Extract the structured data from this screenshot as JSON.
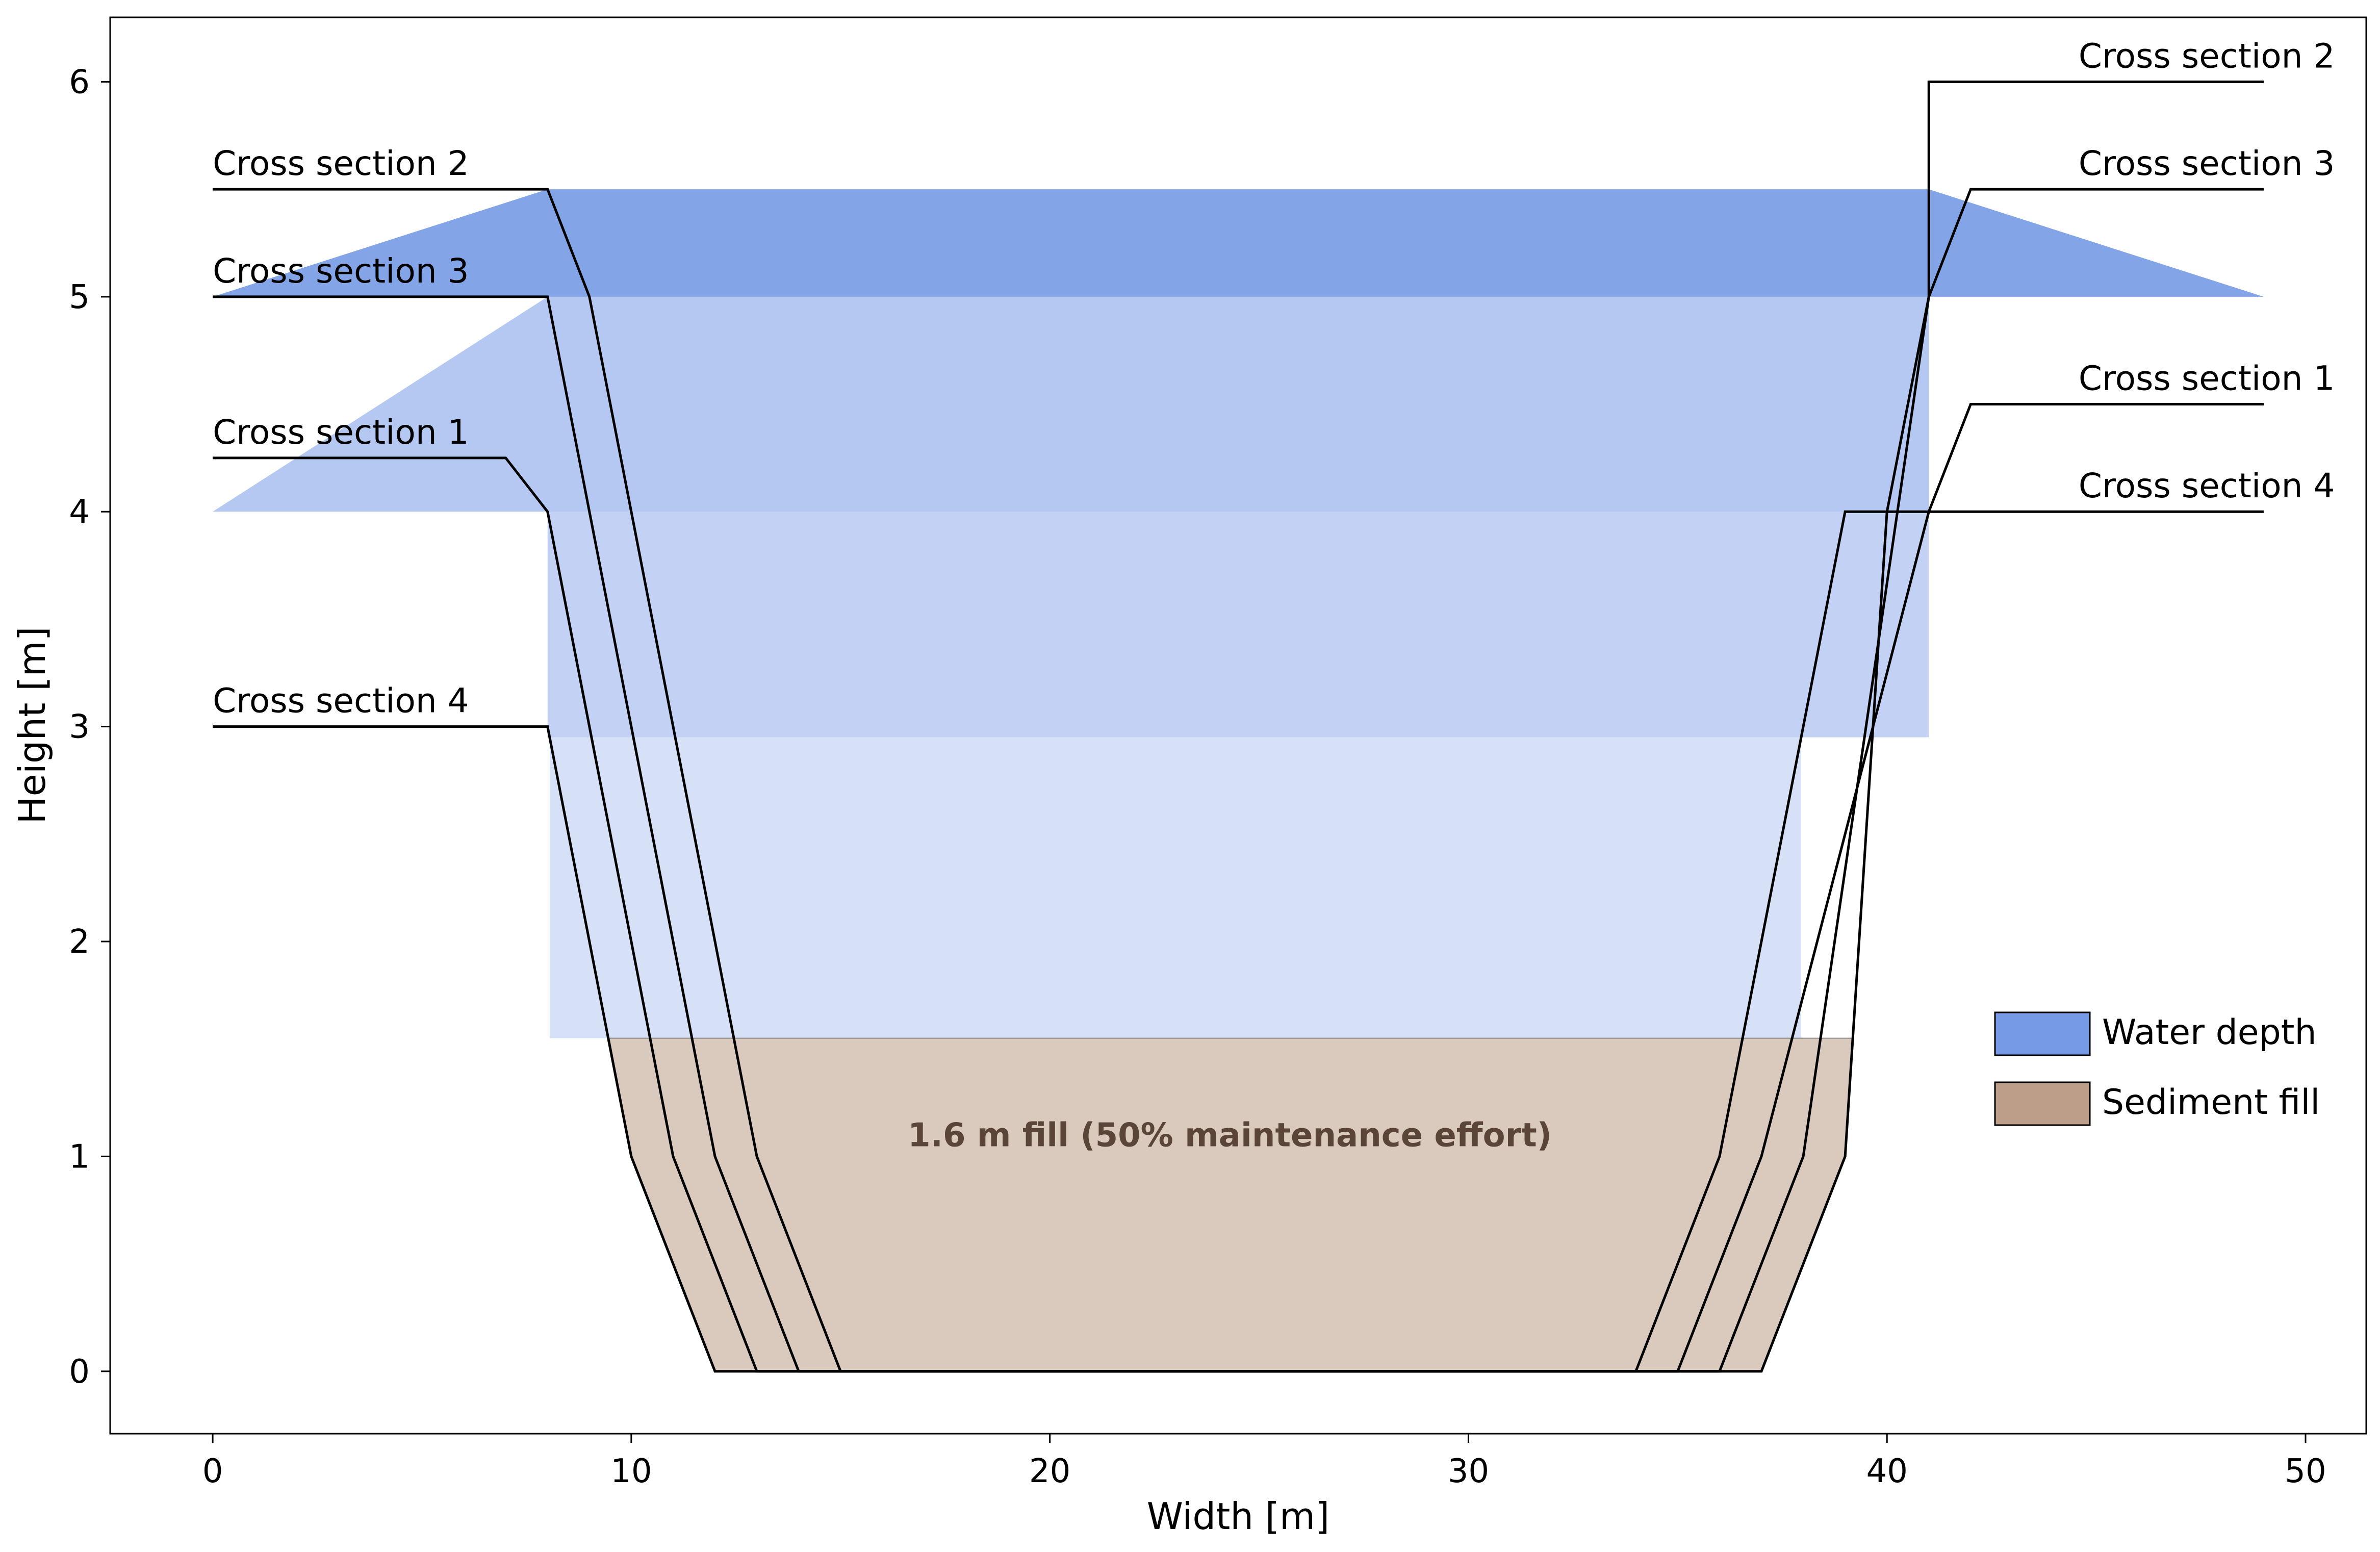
{
  "chart_data": {
    "type": "area",
    "title": "",
    "xlabel": "Width [m]",
    "ylabel": "Height [m]",
    "xlim": [
      -2.45,
      51.45
    ],
    "ylim": [
      -0.29,
      6.3
    ],
    "xticks": [
      0,
      10,
      20,
      30,
      40,
      50
    ],
    "yticks": [
      0,
      1,
      2,
      3,
      4,
      5,
      6
    ],
    "grid": false,
    "legend_position": "right",
    "colors": {
      "water": "#779ae6",
      "sediment": "#bc9e89",
      "sediment_text": "#5b4538",
      "profile": "#000000"
    },
    "cross_sections": [
      {
        "name": "Cross section 2",
        "points": [
          [
            0,
            5.5
          ],
          [
            8,
            5.5
          ],
          [
            9,
            5.0
          ],
          [
            10,
            4.0
          ],
          [
            13,
            1.0
          ],
          [
            15,
            0
          ],
          [
            37,
            0
          ],
          [
            39,
            1.0
          ],
          [
            40,
            4.0
          ],
          [
            41,
            5.0
          ],
          [
            41,
            6.0
          ],
          [
            49,
            6.0
          ]
        ],
        "water_level": 5.5,
        "water_opacity": 0.9
      },
      {
        "name": "Cross section 3",
        "points": [
          [
            0,
            5.0
          ],
          [
            8,
            5.0
          ],
          [
            9,
            4.0
          ],
          [
            12,
            1.0
          ],
          [
            14,
            0
          ],
          [
            36,
            0
          ],
          [
            38,
            1.0
          ],
          [
            41,
            5.0
          ],
          [
            42,
            5.5
          ],
          [
            49,
            5.5
          ]
        ],
        "water_level": 5.0,
        "water_opacity": 0.55
      },
      {
        "name": "Cross section 1",
        "points": [
          [
            0,
            4.25
          ],
          [
            7,
            4.25
          ],
          [
            8,
            4.0
          ],
          [
            11,
            1.0
          ],
          [
            13,
            0
          ],
          [
            35,
            0
          ],
          [
            37,
            1.0
          ],
          [
            41,
            4.0
          ],
          [
            42,
            4.5
          ],
          [
            49,
            4.5
          ]
        ],
        "water_level": 4.0,
        "water_opacity": 0.45
      },
      {
        "name": "Cross section 4",
        "points": [
          [
            0,
            3.0
          ],
          [
            8,
            3.0
          ],
          [
            10,
            1.0
          ],
          [
            12,
            0
          ],
          [
            34,
            0
          ],
          [
            36,
            1.0
          ],
          [
            39,
            4.0
          ],
          [
            42,
            4.0
          ],
          [
            49,
            4.0
          ]
        ],
        "water_level": 2.95,
        "water_opacity": 0.3
      }
    ],
    "sediment_fill": {
      "level": 1.55,
      "annotation": "1.6 m fill (50% maintenance effort)",
      "annotation_position": [
        24.3,
        1.1
      ]
    },
    "left_labels": [
      {
        "text": "Cross section 2",
        "y": 5.5
      },
      {
        "text": "Cross section 3",
        "y": 5.0
      },
      {
        "text": "Cross section 1",
        "y": 4.25
      },
      {
        "text": "Cross section 4",
        "y": 3.0
      }
    ],
    "right_labels": [
      {
        "text": "Cross section 2",
        "y": 6.0
      },
      {
        "text": "Cross section 3",
        "y": 5.5
      },
      {
        "text": "Cross section 1",
        "y": 4.5
      },
      {
        "text": "Cross section 4",
        "y": 4.0
      }
    ],
    "legend": [
      {
        "label": "Water depth",
        "color": "#779ae6"
      },
      {
        "label": "Sediment fill",
        "color": "#bc9e89"
      }
    ]
  }
}
